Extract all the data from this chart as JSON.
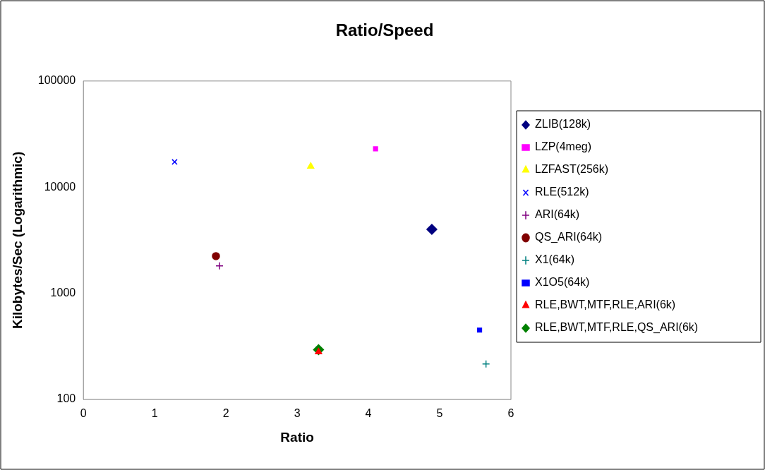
{
  "chart_data": {
    "type": "scatter",
    "title": "Ratio/Speed",
    "xlabel": "Ratio",
    "ylabel": "Kilobytes/Sec (Logarithmic)",
    "log": "y",
    "grid": false,
    "legend": "right",
    "xlim": [
      0,
      6
    ],
    "xticks": [
      0,
      1,
      2,
      3,
      4,
      5,
      6
    ],
    "ylim": [
      100,
      100000
    ],
    "yticks": [
      100,
      1000,
      10000,
      100000
    ],
    "series": [
      {
        "name": "ZLIB(128k)",
        "color": "#000080",
        "marker": "diamond",
        "x": [
          4.89
        ],
        "values": [
          4000
        ]
      },
      {
        "name": "LZP(4meg)",
        "color": "#ff00ff",
        "marker": "square",
        "x": [
          4.1
        ],
        "values": [
          23000
        ]
      },
      {
        "name": "LZFAST(256k)",
        "color": "#ffff00",
        "marker": "triangle",
        "x": [
          3.19
        ],
        "values": [
          15700
        ]
      },
      {
        "name": "RLE(512k)",
        "color": "#0000ff",
        "marker": "x",
        "x": [
          1.28
        ],
        "values": [
          17300
        ]
      },
      {
        "name": "ARI(64k)",
        "color": "#800080",
        "marker": "cross",
        "x": [
          1.91
        ],
        "values": [
          1810
        ]
      },
      {
        "name": "QS_ARI(64k)",
        "color": "#800000",
        "marker": "circle",
        "x": [
          1.86
        ],
        "values": [
          2240
        ]
      },
      {
        "name": "X1(64k)",
        "color": "#008080",
        "marker": "cross",
        "x": [
          5.65
        ],
        "values": [
          216
        ]
      },
      {
        "name": "X1O5(64k)",
        "color": "#0000ff",
        "marker": "square",
        "x": [
          5.56
        ],
        "values": [
          450
        ]
      },
      {
        "name": "RLE,BWT,MTF,RLE,ARI(6k)",
        "color": "#ff0000",
        "marker": "triangle",
        "x": [
          3.3
        ],
        "values": [
          280
        ]
      },
      {
        "name": "RLE,BWT,MTF,RLE,QS_ARI(6k)",
        "color": "#008000",
        "marker": "diamond",
        "x": [
          3.3
        ],
        "values": [
          294
        ]
      }
    ]
  }
}
